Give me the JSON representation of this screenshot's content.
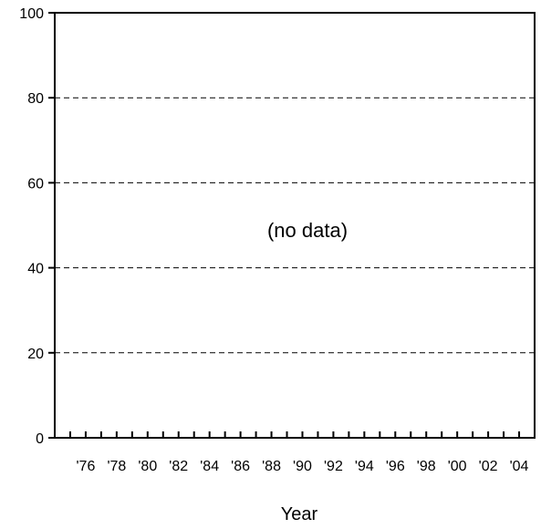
{
  "chart_data": {
    "type": "line",
    "title": "",
    "xlabel": "Year",
    "ylabel": "",
    "ylim": [
      0,
      100
    ],
    "yticks": [
      0,
      20,
      40,
      60,
      80,
      100
    ],
    "xlim": [
      1974,
      2005
    ],
    "x_tick_values": [
      1976,
      1978,
      1980,
      1982,
      1984,
      1986,
      1988,
      1990,
      1992,
      1994,
      1996,
      1998,
      2000,
      2002,
      2004
    ],
    "x_tick_labels": [
      "'76",
      "'78",
      "'80",
      "'82",
      "'84",
      "'86",
      "'88",
      "'90",
      "'92",
      "'94",
      "'96",
      "'98",
      "'00",
      "'02",
      "'04"
    ],
    "x_minor_ticks": [
      1975,
      1976,
      1977,
      1978,
      1979,
      1980,
      1981,
      1982,
      1983,
      1984,
      1985,
      1986,
      1987,
      1988,
      1989,
      1990,
      1991,
      1992,
      1993,
      1994,
      1995,
      1996,
      1997,
      1998,
      1999,
      2000,
      2001,
      2002,
      2003,
      2004
    ],
    "series": [],
    "annotation": "(no data)",
    "grid": {
      "horizontal": true,
      "style": "dashed"
    },
    "colors": {
      "axis": "#000000",
      "grid": "#000000",
      "background": "#ffffff"
    }
  }
}
